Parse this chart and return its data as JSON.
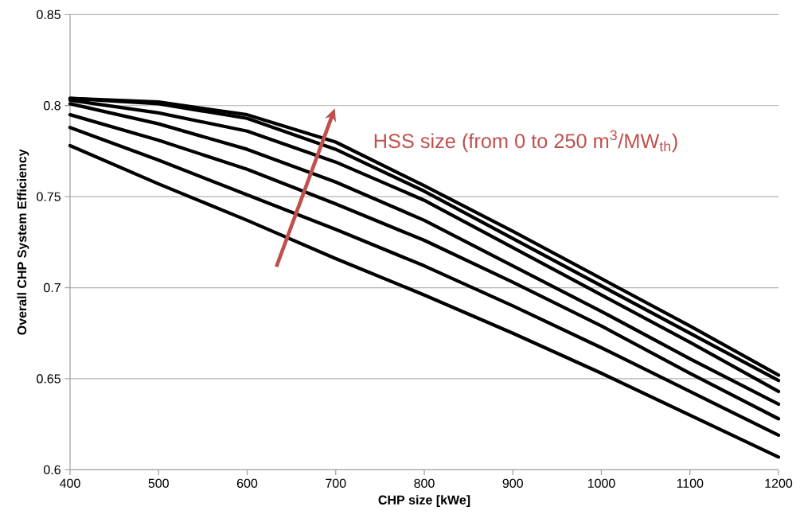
{
  "chart_data": {
    "type": "line",
    "xlabel": "CHP size [kWe]",
    "ylabel": "Overall CHP System Efficiency",
    "x": [
      400,
      500,
      600,
      700,
      800,
      900,
      1000,
      1100,
      1200
    ],
    "series": [
      {
        "color": "#000000",
        "values": [
          0.804,
          0.802,
          0.795,
          0.78,
          0.756,
          0.731,
          0.705,
          0.679,
          0.652
        ]
      },
      {
        "color": "#000000",
        "values": [
          0.804,
          0.801,
          0.793,
          0.776,
          0.753,
          0.727,
          0.701,
          0.675,
          0.649
        ]
      },
      {
        "color": "#000000",
        "values": [
          0.803,
          0.796,
          0.786,
          0.769,
          0.748,
          0.722,
          0.696,
          0.67,
          0.643
        ]
      },
      {
        "color": "#000000",
        "values": [
          0.801,
          0.79,
          0.776,
          0.758,
          0.737,
          0.712,
          0.687,
          0.661,
          0.636
        ]
      },
      {
        "color": "#000000",
        "values": [
          0.795,
          0.781,
          0.765,
          0.746,
          0.726,
          0.703,
          0.679,
          0.653,
          0.628
        ]
      },
      {
        "color": "#000000",
        "values": [
          0.788,
          0.77,
          0.751,
          0.732,
          0.712,
          0.69,
          0.667,
          0.643,
          0.619
        ]
      },
      {
        "color": "#000000",
        "values": [
          0.778,
          0.757,
          0.737,
          0.716,
          0.696,
          0.675,
          0.653,
          0.63,
          0.607
        ]
      }
    ],
    "xlim": [
      400,
      1200
    ],
    "ylim": [
      0.6,
      0.85
    ],
    "xticks": [
      400,
      500,
      600,
      700,
      800,
      900,
      1000,
      1100,
      1200
    ],
    "yticks": [
      0.6,
      0.65,
      0.7,
      0.75,
      0.8,
      0.85
    ],
    "grid": "y",
    "marker": "none",
    "line_style": "solid",
    "annotations": [
      "HSS size (from 0 to 250 m$^{3}$/MW$_{th}$)"
    ]
  }
}
